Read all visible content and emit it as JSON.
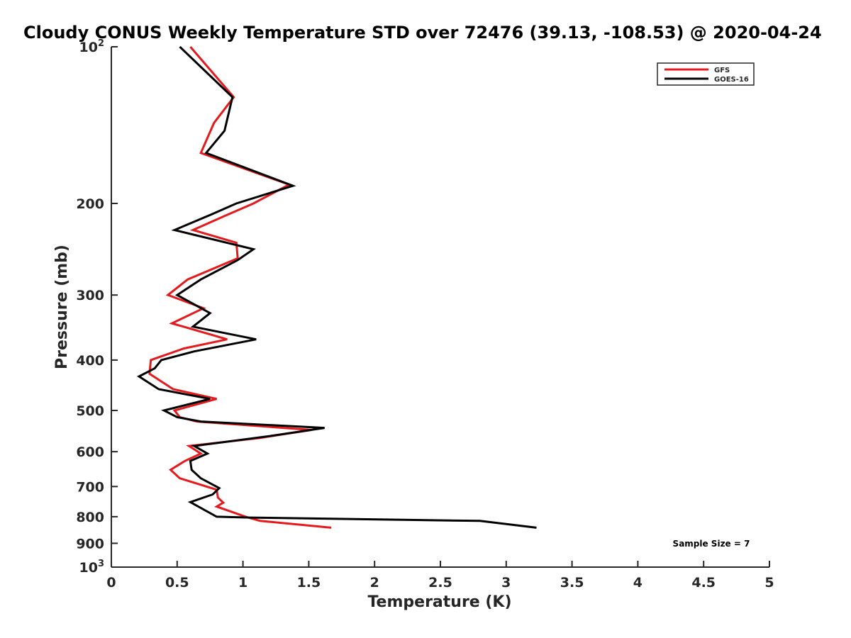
{
  "chart_data": {
    "type": "line",
    "title": "Cloudy CONUS Weekly Temperature STD over 72476 (39.13, -108.53) @ 2020-04-24",
    "xlabel": "Temperature (K)",
    "ylabel": "Pressure (mb)",
    "xlim": [
      0,
      5
    ],
    "ylim": [
      100,
      1000
    ],
    "y_scale": "log",
    "y_reversed": true,
    "grid": false,
    "legend_placement": "top-right",
    "x_ticks": [
      0,
      0.5,
      1,
      1.5,
      2,
      2.5,
      3,
      3.5,
      4,
      4.5,
      5
    ],
    "x_tick_labels": [
      "0",
      "0.5",
      "1",
      "1.5",
      "2",
      "2.5",
      "3",
      "3.5",
      "4",
      "4.5",
      "5"
    ],
    "y_ticks": [
      {
        "value": 100,
        "base": "10",
        "exp": "2"
      },
      {
        "value": 200,
        "text": "200"
      },
      {
        "value": 300,
        "text": "300"
      },
      {
        "value": 400,
        "text": "400"
      },
      {
        "value": 500,
        "text": "500"
      },
      {
        "value": 600,
        "text": "600"
      },
      {
        "value": 700,
        "text": "700"
      },
      {
        "value": 800,
        "text": "800"
      },
      {
        "value": 900,
        "text": "900"
      },
      {
        "value": 1000,
        "base": "10",
        "exp": "3"
      }
    ],
    "annotation": "Sample Size = 7",
    "series": [
      {
        "name": "GFS",
        "color": "#e41a1c",
        "points": [
          [
            0.6,
            100
          ],
          [
            0.93,
            125
          ],
          [
            0.78,
            140
          ],
          [
            0.68,
            160
          ],
          [
            1.35,
            184
          ],
          [
            1.08,
            200
          ],
          [
            0.85,
            212
          ],
          [
            0.62,
            225
          ],
          [
            0.95,
            238
          ],
          [
            0.96,
            255
          ],
          [
            0.58,
            280
          ],
          [
            0.43,
            300
          ],
          [
            0.7,
            318
          ],
          [
            0.46,
            340
          ],
          [
            0.88,
            365
          ],
          [
            0.55,
            380
          ],
          [
            0.3,
            400
          ],
          [
            0.29,
            425
          ],
          [
            0.47,
            455
          ],
          [
            0.8,
            475
          ],
          [
            0.48,
            500
          ],
          [
            0.52,
            515
          ],
          [
            0.65,
            525
          ],
          [
            1.52,
            545
          ],
          [
            1.12,
            565
          ],
          [
            0.59,
            585
          ],
          [
            0.68,
            605
          ],
          [
            0.56,
            625
          ],
          [
            0.45,
            650
          ],
          [
            0.52,
            675
          ],
          [
            0.8,
            710
          ],
          [
            0.81,
            735
          ],
          [
            0.85,
            752
          ],
          [
            0.8,
            765
          ],
          [
            1.02,
            800
          ],
          [
            1.13,
            815
          ],
          [
            1.67,
            840
          ]
        ]
      },
      {
        "name": "GOES-16",
        "color": "#000000",
        "points": [
          [
            0.52,
            100
          ],
          [
            0.92,
            125
          ],
          [
            0.86,
            145
          ],
          [
            0.72,
            160
          ],
          [
            1.38,
            185
          ],
          [
            0.95,
            200
          ],
          [
            0.76,
            210
          ],
          [
            0.48,
            225
          ],
          [
            1.08,
            245
          ],
          [
            0.96,
            257
          ],
          [
            0.68,
            280
          ],
          [
            0.5,
            300
          ],
          [
            0.75,
            325
          ],
          [
            0.62,
            345
          ],
          [
            1.1,
            365
          ],
          [
            0.63,
            385
          ],
          [
            0.38,
            400
          ],
          [
            0.33,
            415
          ],
          [
            0.21,
            430
          ],
          [
            0.36,
            455
          ],
          [
            0.75,
            475
          ],
          [
            0.4,
            500
          ],
          [
            0.5,
            515
          ],
          [
            0.68,
            525
          ],
          [
            1.62,
            540
          ],
          [
            1.2,
            560
          ],
          [
            0.63,
            585
          ],
          [
            0.73,
            605
          ],
          [
            0.6,
            625
          ],
          [
            0.61,
            650
          ],
          [
            0.68,
            675
          ],
          [
            0.82,
            705
          ],
          [
            0.77,
            725
          ],
          [
            0.6,
            750
          ],
          [
            0.8,
            800
          ],
          [
            1.05,
            803
          ],
          [
            2.8,
            815
          ],
          [
            3.23,
            840
          ]
        ]
      }
    ]
  }
}
